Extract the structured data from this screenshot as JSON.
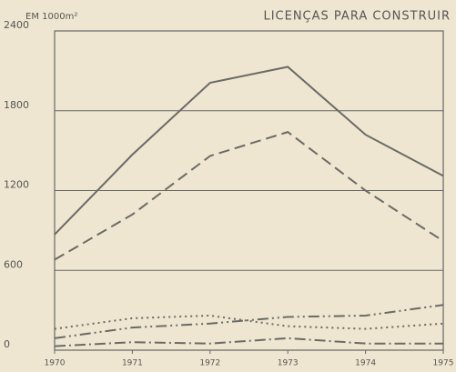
{
  "chart_data": {
    "type": "line",
    "title": "LICENÇAS PARA CONSTRUIR",
    "y_label": "EM 1000m²",
    "categories": [
      "1970",
      "1971",
      "1972",
      "1973",
      "1974",
      "1975"
    ],
    "series": [
      {
        "color": "#6a6a66",
        "dash": "solid",
        "values": [
          870,
          1470,
          2010,
          2130,
          1620,
          1310
        ]
      },
      {
        "color": "#6a6a66",
        "dash": "dashed",
        "values": [
          680,
          1020,
          1460,
          1640,
          1200,
          820
        ]
      },
      {
        "color": "#6a6a66",
        "dash": "dotted",
        "values": [
          160,
          240,
          260,
          180,
          160,
          200
        ]
      },
      {
        "color": "#6a6a66",
        "dash": "dash-dot-dot",
        "values": [
          90,
          170,
          200,
          250,
          260,
          340
        ]
      },
      {
        "color": "#6a6a66",
        "dash": "dash-dot",
        "values": [
          30,
          60,
          50,
          90,
          50,
          50
        ]
      }
    ],
    "ylim": [
      0,
      2400
    ],
    "yticks": [
      0,
      600,
      1200,
      1800,
      2400
    ],
    "grid": true
  }
}
